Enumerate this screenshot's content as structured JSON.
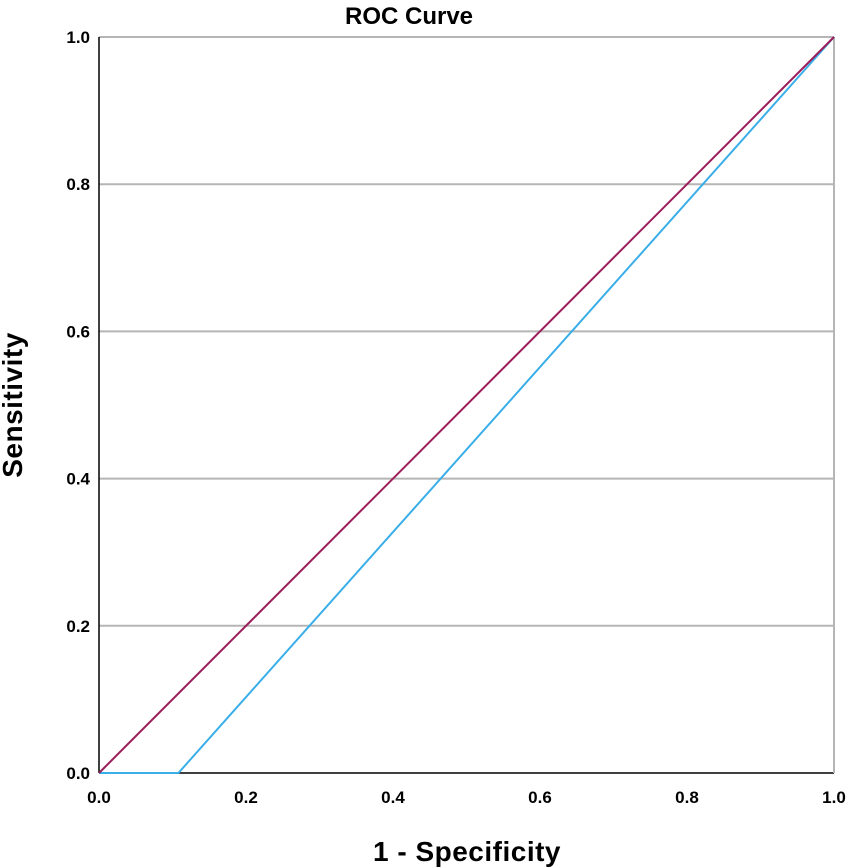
{
  "chart_data": {
    "type": "line",
    "title": "ROC Curve",
    "xlabel": "1 - Specificity",
    "ylabel": "Sensitivity",
    "xlim": [
      0,
      1
    ],
    "ylim": [
      0,
      1
    ],
    "xticks": [
      "0.0",
      "0.2",
      "0.4",
      "0.6",
      "0.8",
      "1.0"
    ],
    "yticks": [
      "0.0",
      "0.2",
      "0.4",
      "0.6",
      "0.8",
      "1.0"
    ],
    "grid": "horizontal",
    "legend": "none",
    "series": [
      {
        "color": "#3aaee8",
        "x": [
          0.0,
          0.108,
          1.0
        ],
        "y": [
          0.0,
          0.0,
          1.0
        ]
      },
      {
        "color": "#9b1d5a",
        "x": [
          0.0,
          1.0
        ],
        "y": [
          0.0,
          1.0
        ]
      }
    ]
  }
}
